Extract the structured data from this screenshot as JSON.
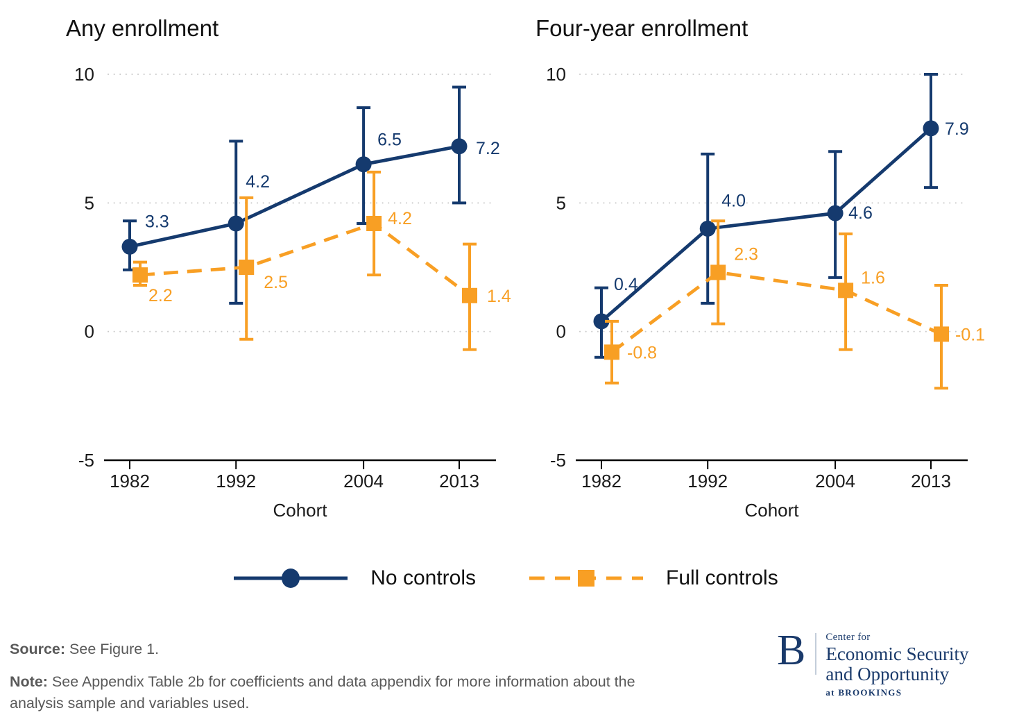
{
  "colors": {
    "navy": "#153A6E",
    "orange": "#F89F24",
    "grid": "#c9c9c9",
    "axis": "#000000",
    "tick_text": "#1a1a1a",
    "footer_gray": "#595959",
    "logo_navy": "#1A3A6B"
  },
  "chart_data": [
    {
      "type": "line",
      "title": "Any enrollment",
      "xlabel": "Cohort",
      "x": [
        1982,
        1992,
        2004,
        2013
      ],
      "xtick_labels": [
        "1982",
        "1992",
        "2004",
        "2013"
      ],
      "ylim": [
        -5,
        10
      ],
      "yticks": [
        10,
        5,
        0,
        -5
      ],
      "grid": "dotted horizontal gridlines at 0, 5, 10",
      "legend_position": "bottom-center",
      "series": [
        {
          "name": "No controls",
          "color_key": "navy",
          "line": "solid",
          "marker": "circle",
          "values": [
            3.3,
            4.2,
            6.5,
            7.2
          ],
          "labels": [
            "3.3",
            "4.2",
            "6.5",
            "7.2"
          ],
          "ci_low": [
            2.4,
            1.1,
            4.2,
            5.0
          ],
          "ci_high": [
            4.3,
            7.4,
            8.7,
            9.5
          ]
        },
        {
          "name": "Full controls",
          "color_key": "orange",
          "line": "dashed",
          "marker": "square",
          "values": [
            2.2,
            2.5,
            4.2,
            1.4
          ],
          "labels": [
            "2.2",
            "2.5",
            "4.2",
            "1.4"
          ],
          "ci_low": [
            1.8,
            -0.3,
            2.2,
            -0.7
          ],
          "ci_high": [
            2.7,
            5.2,
            6.2,
            3.4
          ]
        }
      ]
    },
    {
      "type": "line",
      "title": "Four-year enrollment",
      "xlabel": "Cohort",
      "x": [
        1982,
        1992,
        2004,
        2013
      ],
      "xtick_labels": [
        "1982",
        "1992",
        "2004",
        "2013"
      ],
      "ylim": [
        -5,
        10
      ],
      "yticks": [
        10,
        5,
        0,
        -5
      ],
      "grid": "dotted horizontal gridlines at 0, 5, 10",
      "legend_position": "bottom-center",
      "series": [
        {
          "name": "No controls",
          "color_key": "navy",
          "line": "solid",
          "marker": "circle",
          "values": [
            0.4,
            4.0,
            4.6,
            7.9
          ],
          "labels": [
            "0.4",
            "4.0",
            "4.6",
            "7.9"
          ],
          "ci_low": [
            -1.0,
            1.1,
            2.1,
            5.6
          ],
          "ci_high": [
            1.7,
            6.9,
            7.0,
            10.0
          ]
        },
        {
          "name": "Full controls",
          "color_key": "orange",
          "line": "dashed",
          "marker": "square",
          "values": [
            -0.8,
            2.3,
            1.6,
            -0.1
          ],
          "labels": [
            "-0.8",
            "2.3",
            "1.6",
            "-0.1"
          ],
          "ci_low": [
            -2.0,
            0.3,
            -0.7,
            -2.2
          ],
          "ci_high": [
            0.4,
            4.3,
            3.8,
            1.8
          ]
        }
      ]
    }
  ],
  "legend": {
    "items": [
      {
        "label": "No controls"
      },
      {
        "label": "Full controls"
      }
    ]
  },
  "footer": {
    "source_label": "Source:",
    "source_text": " See Figure 1.",
    "note_label": "Note:",
    "note_text": " See Appendix Table 2b for coefficients and data appendix for more information about the analysis sample and variables used."
  },
  "logo": {
    "b": "B",
    "line1": "Center for",
    "line2": "Economic Security",
    "line3": "and Opportunity",
    "line4": "at BROOKINGS"
  }
}
